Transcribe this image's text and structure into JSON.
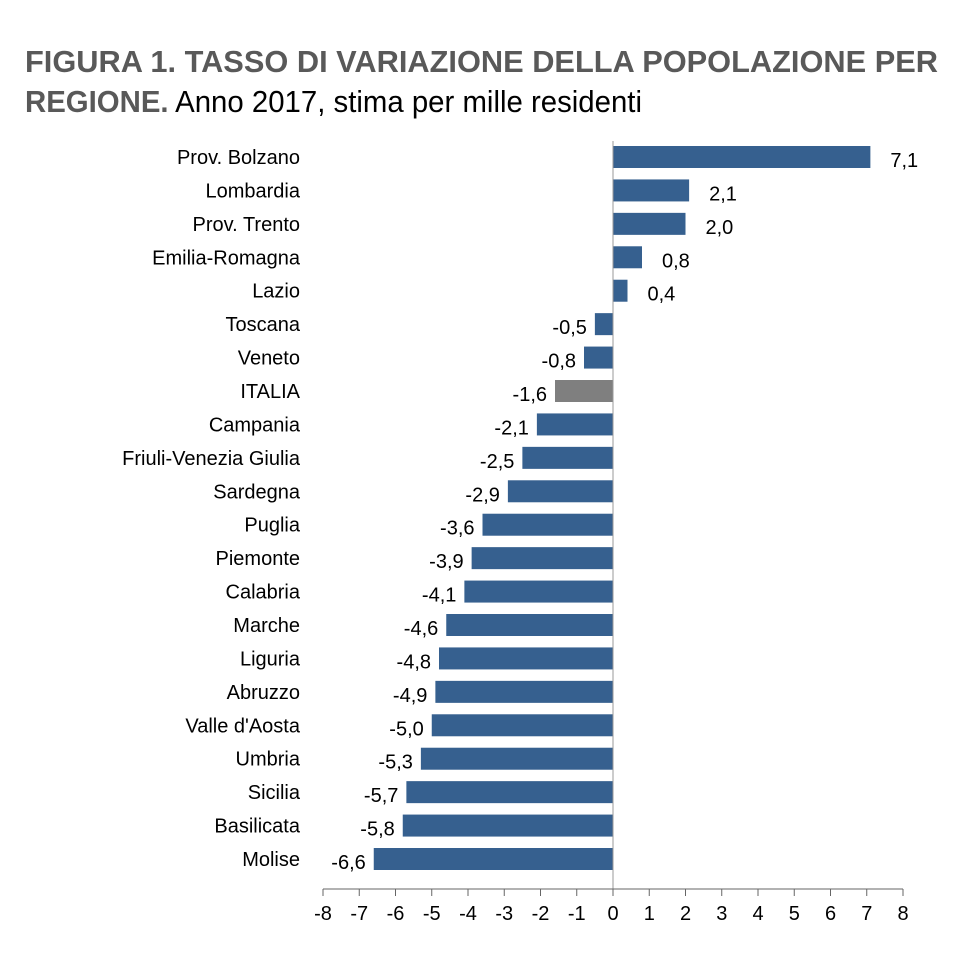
{
  "chart_data": {
    "type": "bar",
    "orientation": "horizontal",
    "title": "FIGURA 1. TASSO DI VARIAZIONE DELLA POPOLAZIONE PER",
    "title_line2_bold": "REGIONE.",
    "subtitle": "Anno 2017, stima per mille residenti",
    "categories": [
      "Prov. Bolzano",
      "Lombardia",
      "Prov. Trento",
      "Emilia-Romagna",
      "Lazio",
      "Toscana",
      "Veneto",
      "ITALIA",
      "Campania",
      "Friuli-Venezia Giulia",
      "Sardegna",
      "Puglia",
      "Piemonte",
      "Calabria",
      "Marche",
      "Liguria",
      "Abruzzo",
      "Valle d'Aosta",
      "Umbria",
      "Sicilia",
      "Basilicata",
      "Molise"
    ],
    "values": [
      7.1,
      2.1,
      2.0,
      0.8,
      0.4,
      -0.5,
      -0.8,
      -1.6,
      -2.1,
      -2.5,
      -2.9,
      -3.6,
      -3.9,
      -4.1,
      -4.6,
      -4.8,
      -4.9,
      -5.0,
      -5.3,
      -5.7,
      -5.8,
      -6.6
    ],
    "data_labels": [
      "7,1",
      "2,1",
      "2,0",
      "0,8",
      "0,4",
      "-0,5",
      "-0,8",
      "-1,6",
      "-2,1",
      "-2,5",
      "-2,9",
      "-3,6",
      "-3,9",
      "-4,1",
      "-4,6",
      "-4,8",
      "-4,9",
      "-5,0",
      "-5,3",
      "-5,7",
      "-5,8",
      "-6,6"
    ],
    "highlight_category": "ITALIA",
    "xlim": [
      -8,
      8
    ],
    "xticks": [
      "-8",
      "-7",
      "-6",
      "-5",
      "-4",
      "-3",
      "-2",
      "-1",
      "0",
      "1",
      "2",
      "3",
      "4",
      "5",
      "6",
      "7",
      "8"
    ],
    "xlabel": "",
    "ylabel": "",
    "grid": false,
    "legend": "none",
    "colors": {
      "bar": "#36608f",
      "highlight": "#7f7f7f",
      "title": "#595959"
    }
  }
}
